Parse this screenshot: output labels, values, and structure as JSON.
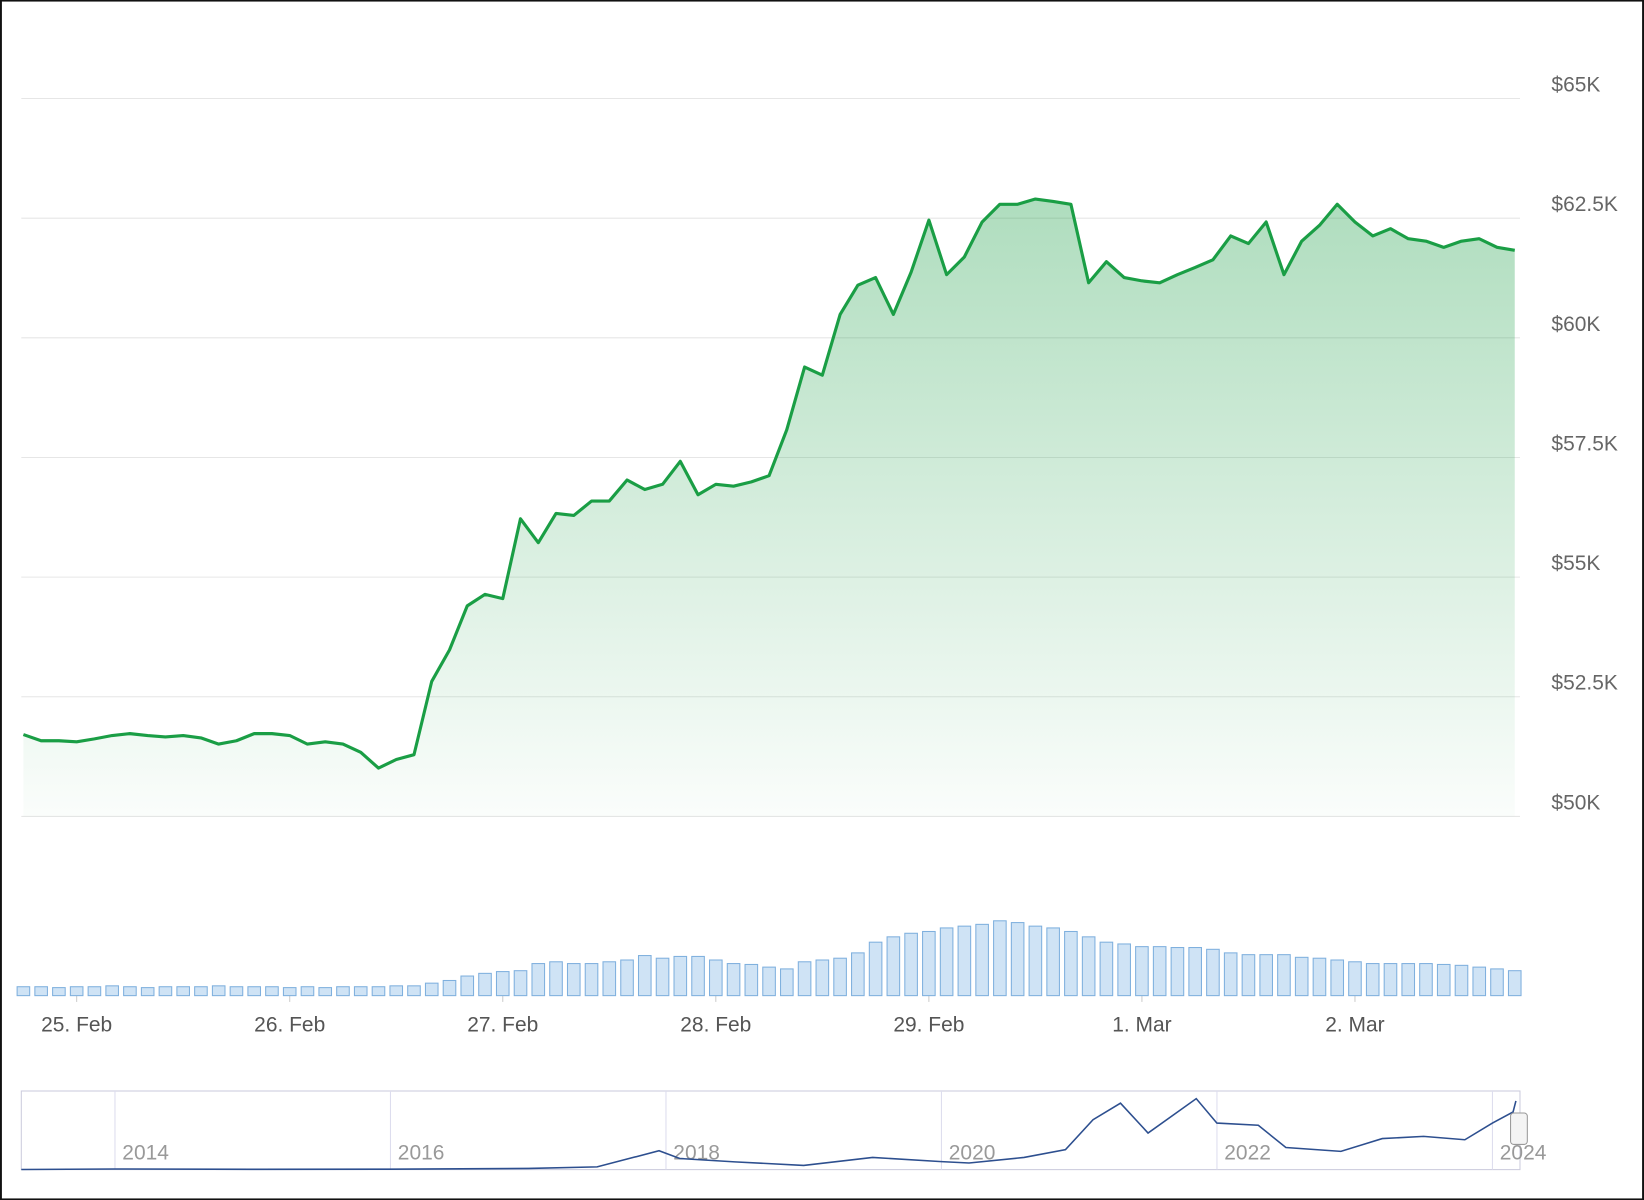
{
  "chart_data": [
    {
      "type": "area",
      "values": [
        51710,
        51580,
        51580,
        51560,
        51620,
        51690,
        51730,
        51690,
        51660,
        51690,
        51640,
        51510,
        51580,
        51730,
        51730,
        51690,
        51510,
        51560,
        51510,
        51340,
        51010,
        51190,
        51290,
        52820,
        53480,
        54400,
        54640,
        54550,
        56220,
        55720,
        56330,
        56290,
        56590,
        56590,
        57030,
        56830,
        56940,
        57420,
        56720,
        56940,
        56900,
        56990,
        57120,
        58080,
        59390,
        59220,
        60490,
        61100,
        61260,
        60490,
        61370,
        62460,
        61320,
        61690,
        62420,
        62790,
        62790,
        62900,
        62850,
        62790,
        61150,
        61590,
        61260,
        61190,
        61150,
        61320,
        61470,
        61630,
        62130,
        61970,
        62420,
        61320,
        62020,
        62350,
        62790,
        62420,
        62130,
        62280,
        62070,
        62020,
        61890,
        62020,
        62070,
        61890,
        61830
      ],
      "color": "#1a9e45",
      "xlim": [
        0,
        84
      ],
      "xticks": [
        {
          "value": 3,
          "label": "25. Feb"
        },
        {
          "value": 15,
          "label": "26. Feb"
        },
        {
          "value": 27,
          "label": "27. Feb"
        },
        {
          "value": 39,
          "label": "28. Feb"
        },
        {
          "value": 51,
          "label": "29. Feb"
        },
        {
          "value": 63,
          "label": "1. Mar"
        },
        {
          "value": 75,
          "label": "2. Mar"
        }
      ],
      "ylim": [
        50000,
        65000
      ],
      "yticks": [
        {
          "value": 50000,
          "label": "$50K"
        },
        {
          "value": 52500,
          "label": "$52.5K"
        },
        {
          "value": 55000,
          "label": "$55K"
        },
        {
          "value": 57500,
          "label": "$57.5K"
        },
        {
          "value": 60000,
          "label": "$60K"
        },
        {
          "value": 62500,
          "label": "$62.5K"
        },
        {
          "value": 65000,
          "label": "$65K"
        }
      ],
      "grid": true
    },
    {
      "type": "bar",
      "values": [
        10,
        10,
        9,
        10,
        10,
        11,
        10,
        9,
        10,
        10,
        10,
        11,
        10,
        10,
        10,
        9,
        10,
        9,
        10,
        10,
        10,
        11,
        11,
        14,
        17,
        22,
        25,
        27,
        28,
        36,
        38,
        36,
        36,
        38,
        40,
        45,
        42,
        44,
        44,
        40,
        36,
        35,
        32,
        30,
        38,
        40,
        42,
        48,
        60,
        66,
        70,
        72,
        76,
        78,
        80,
        84,
        82,
        78,
        76,
        72,
        66,
        60,
        58,
        55,
        55,
        54,
        54,
        52,
        48,
        46,
        46,
        46,
        43,
        42,
        40,
        38,
        36,
        36,
        36,
        36,
        35,
        34,
        32,
        30,
        28
      ],
      "color": "#cfe3f5",
      "ylim": [
        0,
        100
      ]
    },
    {
      "type": "line",
      "x": [
        2013.32,
        2014,
        2015,
        2016,
        2017,
        2017.5,
        2017.95,
        2018.1,
        2018.5,
        2019,
        2019.5,
        2020,
        2020.2,
        2020.6,
        2020.9,
        2021.1,
        2021.3,
        2021.5,
        2021.85,
        2022,
        2022.3,
        2022.5,
        2022.9,
        2023.2,
        2023.5,
        2023.8,
        2024,
        2024.15,
        2024.17
      ],
      "values": [
        100,
        600,
        300,
        400,
        1000,
        2500,
        17000,
        10000,
        7000,
        3800,
        11000,
        7200,
        6000,
        11000,
        18000,
        45000,
        60000,
        33000,
        64000,
        42000,
        40000,
        20000,
        16500,
        28000,
        30000,
        27000,
        42000,
        52000,
        62000
      ],
      "color": "#2d4f8f",
      "xlim": [
        2013.32,
        2024.2
      ],
      "xticks": [
        2014,
        2016,
        2018,
        2020,
        2022,
        2024
      ],
      "ylim": [
        0,
        70000
      ]
    }
  ]
}
